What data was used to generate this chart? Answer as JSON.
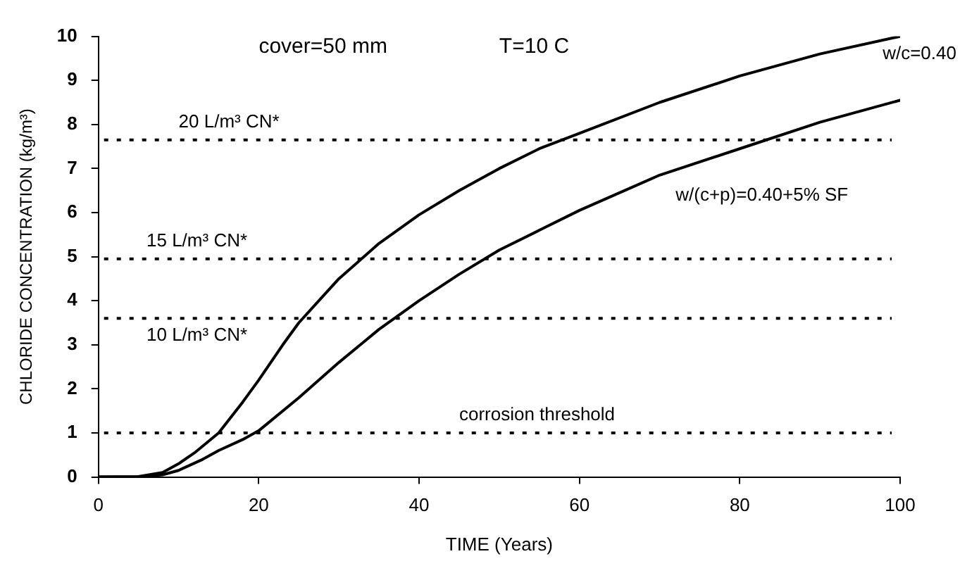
{
  "chart_data": {
    "type": "line",
    "xlabel": "TIME (Years)",
    "ylabel": "CHLORIDE CONCENTRATION (kg/m³)",
    "annotations": [
      "cover=50 mm",
      "T=10 C"
    ],
    "series": [
      {
        "name": "w/c=0.40",
        "color": "#000000",
        "x": [
          0,
          5,
          8,
          10,
          12,
          15,
          18,
          20,
          23,
          25,
          28,
          30,
          35,
          40,
          45,
          50,
          55,
          60,
          70,
          80,
          90,
          100
        ],
        "values": [
          0,
          0.01,
          0.1,
          0.3,
          0.55,
          1.0,
          1.7,
          2.2,
          3.0,
          3.5,
          4.1,
          4.5,
          5.3,
          5.95,
          6.5,
          7.0,
          7.45,
          7.8,
          8.5,
          9.1,
          9.6,
          10.0
        ]
      },
      {
        "name": "w/(c+p)=0.40+5% SF",
        "color": "#000000",
        "x": [
          0,
          5,
          8,
          10,
          13,
          15,
          18,
          20,
          25,
          30,
          35,
          40,
          45,
          50,
          55,
          60,
          70,
          80,
          90,
          100
        ],
        "values": [
          0,
          0,
          0.05,
          0.15,
          0.4,
          0.6,
          0.85,
          1.05,
          1.8,
          2.6,
          3.35,
          4.0,
          4.6,
          5.15,
          5.6,
          6.05,
          6.85,
          7.45,
          8.05,
          8.55
        ]
      }
    ],
    "xlim": [
      0,
      100
    ],
    "xticks": [
      0,
      20,
      40,
      60,
      80,
      100
    ],
    "ylim": [
      0,
      10
    ],
    "yticks": [
      0,
      1,
      2,
      3,
      4,
      5,
      6,
      7,
      8,
      9,
      10
    ],
    "grid": false,
    "legend": false,
    "marker": "none",
    "line_style": "solid",
    "ref_lines": [
      {
        "axis": "y",
        "value": 7.65,
        "label": "20 L/m³ CN*",
        "line_style": "dotted",
        "color": "#000000"
      },
      {
        "axis": "y",
        "value": 4.95,
        "label": "15 L/m³ CN*",
        "line_style": "dotted",
        "color": "#000000"
      },
      {
        "axis": "y",
        "value": 3.6,
        "label": "10 L/m³ CN*",
        "line_style": "dotted",
        "color": "#000000"
      },
      {
        "axis": "y",
        "value": 1.0,
        "label": "corrosion threshold",
        "line_style": "dotted",
        "color": "#000000"
      }
    ]
  }
}
